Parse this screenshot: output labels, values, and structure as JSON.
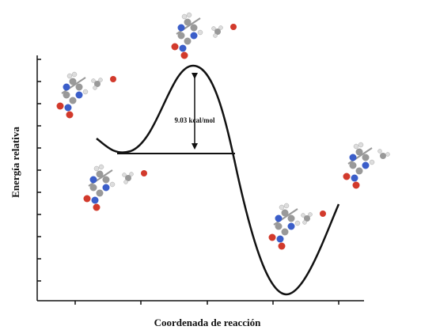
{
  "y_axis_label": "Energía relativa",
  "x_axis_label": "Coordenada de reacción",
  "annotation": "9.03 kcal/mol"
}
